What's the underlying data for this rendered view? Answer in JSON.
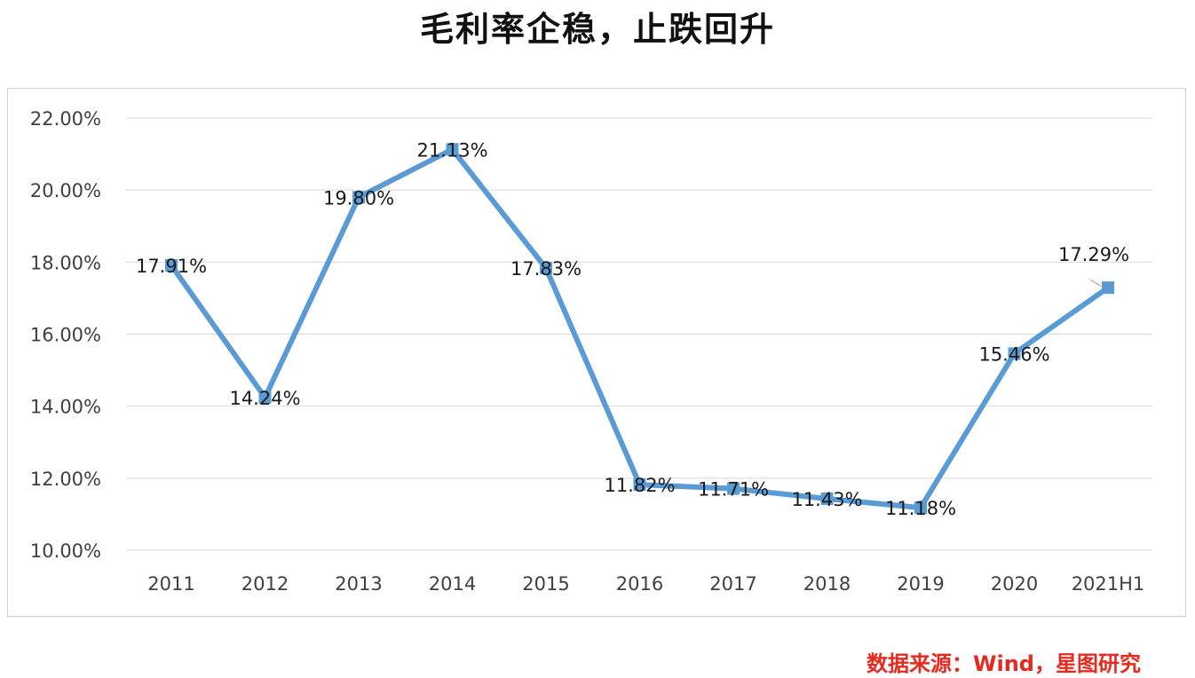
{
  "title": "毛利率企稳，止跌回升",
  "source_note": "数据来源：Wind，星图研究",
  "watermark_text": "",
  "colors": {
    "line": "#5b9bd5",
    "grid": "#d9d9d9",
    "source": "#e8291f"
  },
  "chart_data": {
    "type": "line",
    "categories": [
      "2011",
      "2012",
      "2013",
      "2014",
      "2015",
      "2016",
      "2017",
      "2018",
      "2019",
      "2020",
      "2021H1"
    ],
    "series": [
      {
        "values": [
          17.91,
          14.24,
          19.8,
          21.13,
          17.83,
          11.82,
          11.71,
          11.43,
          11.18,
          15.46,
          17.29
        ],
        "labels": [
          "17.91%",
          "14.24%",
          "19.80%",
          "21.13%",
          "17.83%",
          "11.82%",
          "11.71%",
          "11.43%",
          "11.18%",
          "15.46%",
          "17.29%"
        ]
      }
    ],
    "y_ticks": [
      "22.00%",
      "20.00%",
      "18.00%",
      "16.00%",
      "14.00%",
      "12.00%",
      "10.00%"
    ],
    "y_tick_values": [
      22,
      20,
      18,
      16,
      14,
      12,
      10
    ],
    "ylim": [
      10,
      22
    ],
    "grid": true,
    "legend": "none",
    "title": "毛利率企稳，止跌回升",
    "xlabel": "",
    "ylabel": ""
  }
}
